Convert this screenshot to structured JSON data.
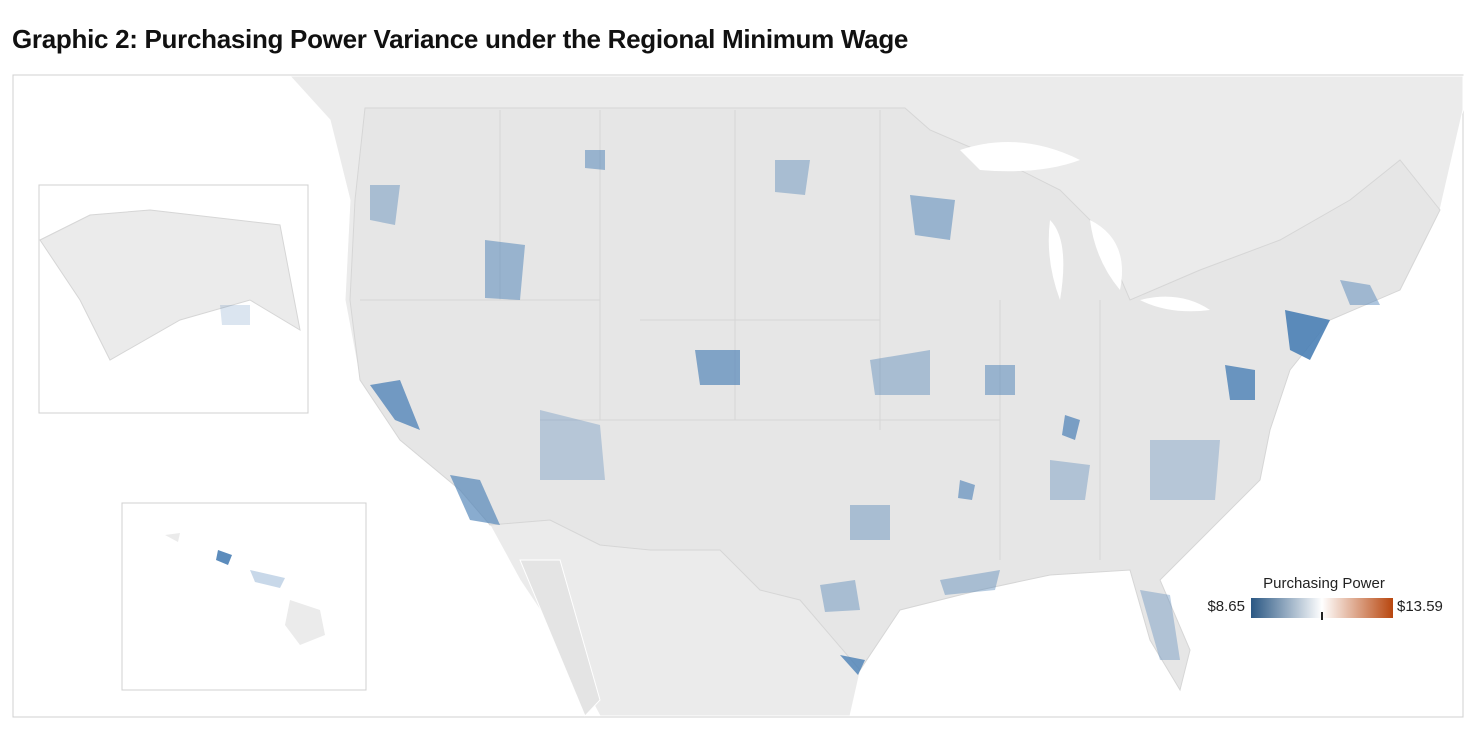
{
  "header": {
    "title": "Graphic 2: Purchasing Power Variance under the Regional Minimum Wage"
  },
  "map": {
    "legend": {
      "title": "Purchasing Power",
      "min": {
        "value": 8.65,
        "label": "$8.65"
      },
      "max": {
        "value": 13.59,
        "label": "$13.59"
      },
      "midpoint": 11.12,
      "colors": [
        "#2a5783",
        "#ffffff",
        "#b8460e"
      ]
    }
  }
}
